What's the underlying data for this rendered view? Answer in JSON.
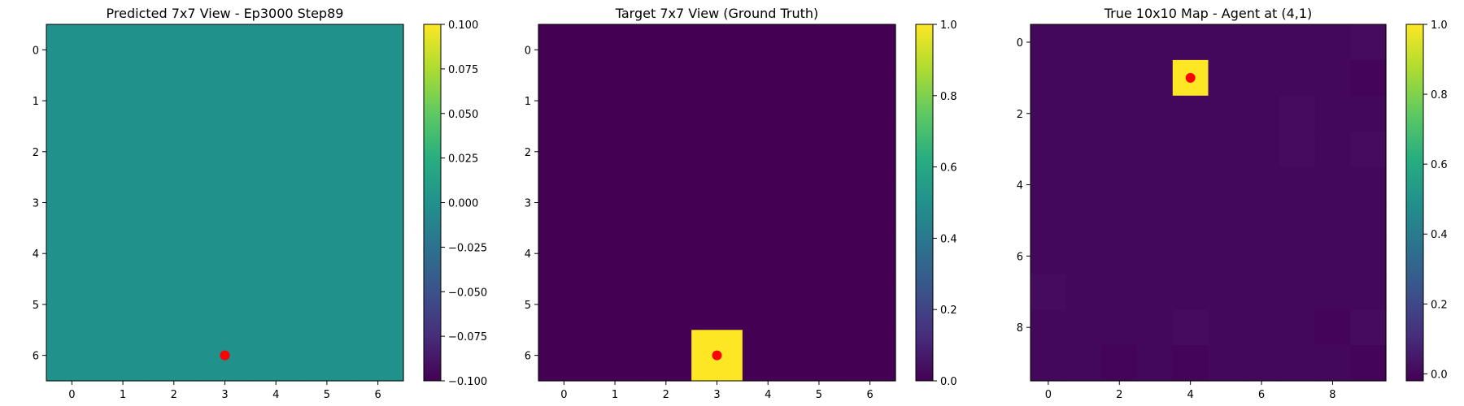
{
  "chart_data": [
    {
      "type": "heatmap",
      "title": "Predicted 7x7 View - Ep3000 Step89",
      "rows": 7,
      "cols": 7,
      "x_ticks": [
        0,
        1,
        2,
        3,
        4,
        5,
        6
      ],
      "y_ticks": [
        0,
        1,
        2,
        3,
        4,
        5,
        6
      ],
      "values": [
        [
          0,
          0,
          0,
          0,
          0,
          0,
          0
        ],
        [
          0,
          0,
          0,
          0,
          0,
          0,
          0
        ],
        [
          0,
          0,
          0,
          0,
          0,
          0,
          0
        ],
        [
          0,
          0,
          0,
          0,
          0,
          0,
          0
        ],
        [
          0,
          0,
          0,
          0,
          0,
          0,
          0
        ],
        [
          0,
          0,
          0,
          0,
          0,
          0,
          0
        ],
        [
          0,
          0,
          0,
          0,
          0,
          0,
          0
        ]
      ],
      "vmin": -0.1,
      "vmax": 0.1,
      "colormap": "viridis",
      "colorbar_ticks": [
        0.1,
        0.075,
        0.05,
        0.025,
        0.0,
        -0.025,
        -0.05,
        -0.075,
        -0.1
      ],
      "colorbar_tick_labels": [
        "0.100",
        "0.075",
        "0.050",
        "0.025",
        "0.000",
        "−0.025",
        "−0.050",
        "−0.075",
        "−0.100"
      ],
      "marker": {
        "x": 3,
        "y": 6,
        "color": "#ff0000"
      }
    },
    {
      "type": "heatmap",
      "title": "Target 7x7 View (Ground Truth)",
      "rows": 7,
      "cols": 7,
      "x_ticks": [
        0,
        1,
        2,
        3,
        4,
        5,
        6
      ],
      "y_ticks": [
        0,
        1,
        2,
        3,
        4,
        5,
        6
      ],
      "values": [
        [
          0,
          0,
          0,
          0,
          0,
          0,
          0
        ],
        [
          0,
          0,
          0,
          0,
          0,
          0,
          0
        ],
        [
          0,
          0,
          0,
          0,
          0,
          0,
          0
        ],
        [
          0,
          0,
          0,
          0,
          0,
          0,
          0
        ],
        [
          0,
          0,
          0,
          0,
          0,
          0,
          0
        ],
        [
          0,
          0,
          0,
          0,
          0,
          0,
          0
        ],
        [
          0,
          0,
          0,
          1,
          0,
          0,
          0
        ]
      ],
      "vmin": 0,
      "vmax": 1,
      "colormap": "viridis",
      "colorbar_ticks": [
        1.0,
        0.8,
        0.6,
        0.4,
        0.2,
        0.0
      ],
      "colorbar_tick_labels": [
        "1.0",
        "0.8",
        "0.6",
        "0.4",
        "0.2",
        "0.0"
      ],
      "marker": {
        "x": 3,
        "y": 6,
        "color": "#ff0000"
      }
    },
    {
      "type": "heatmap",
      "title": "True 10x10 Map - Agent at (4,1)",
      "rows": 10,
      "cols": 10,
      "x_ticks": [
        0,
        2,
        4,
        6,
        8
      ],
      "y_ticks": [
        0,
        2,
        4,
        6,
        8
      ],
      "values": [
        [
          0.0,
          0.0,
          0.0,
          0.0,
          0.0,
          0.0,
          0.0,
          0.0,
          0.0,
          0.01
        ],
        [
          0.0,
          0.0,
          0.0,
          0.0,
          1.0,
          0.0,
          0.0,
          0.0,
          0.0,
          -0.01
        ],
        [
          0.0,
          0.0,
          0.0,
          0.0,
          0.0,
          0.0,
          0.0,
          0.01,
          0.0,
          0.0
        ],
        [
          0.0,
          0.0,
          0.0,
          0.0,
          0.0,
          0.0,
          0.0,
          0.01,
          0.0,
          0.01
        ],
        [
          0.0,
          0.0,
          0.0,
          0.0,
          0.0,
          0.0,
          0.0,
          0.0,
          0.0,
          0.0
        ],
        [
          0.0,
          0.0,
          0.0,
          0.0,
          0.0,
          0.0,
          0.0,
          0.0,
          0.0,
          0.0
        ],
        [
          0.0,
          0.0,
          0.0,
          0.0,
          0.0,
          0.0,
          0.0,
          0.0,
          0.0,
          0.0
        ],
        [
          0.01,
          0.0,
          0.0,
          0.0,
          0.0,
          0.0,
          0.0,
          0.0,
          0.0,
          0.0
        ],
        [
          0.0,
          0.0,
          0.0,
          0.0,
          0.01,
          0.0,
          0.0,
          0.0,
          -0.01,
          0.01
        ],
        [
          0.0,
          0.0,
          -0.01,
          0.0,
          -0.01,
          0.0,
          0.0,
          0.0,
          0.0,
          -0.01
        ]
      ],
      "vmin": -0.02,
      "vmax": 1,
      "colormap": "viridis",
      "colorbar_ticks": [
        1.0,
        0.8,
        0.6,
        0.4,
        0.2,
        0.0
      ],
      "colorbar_tick_labels": [
        "1.0",
        "0.8",
        "0.6",
        "0.4",
        "0.2",
        "0.0"
      ],
      "marker": {
        "x": 4,
        "y": 1,
        "color": "#ff0000"
      }
    }
  ]
}
